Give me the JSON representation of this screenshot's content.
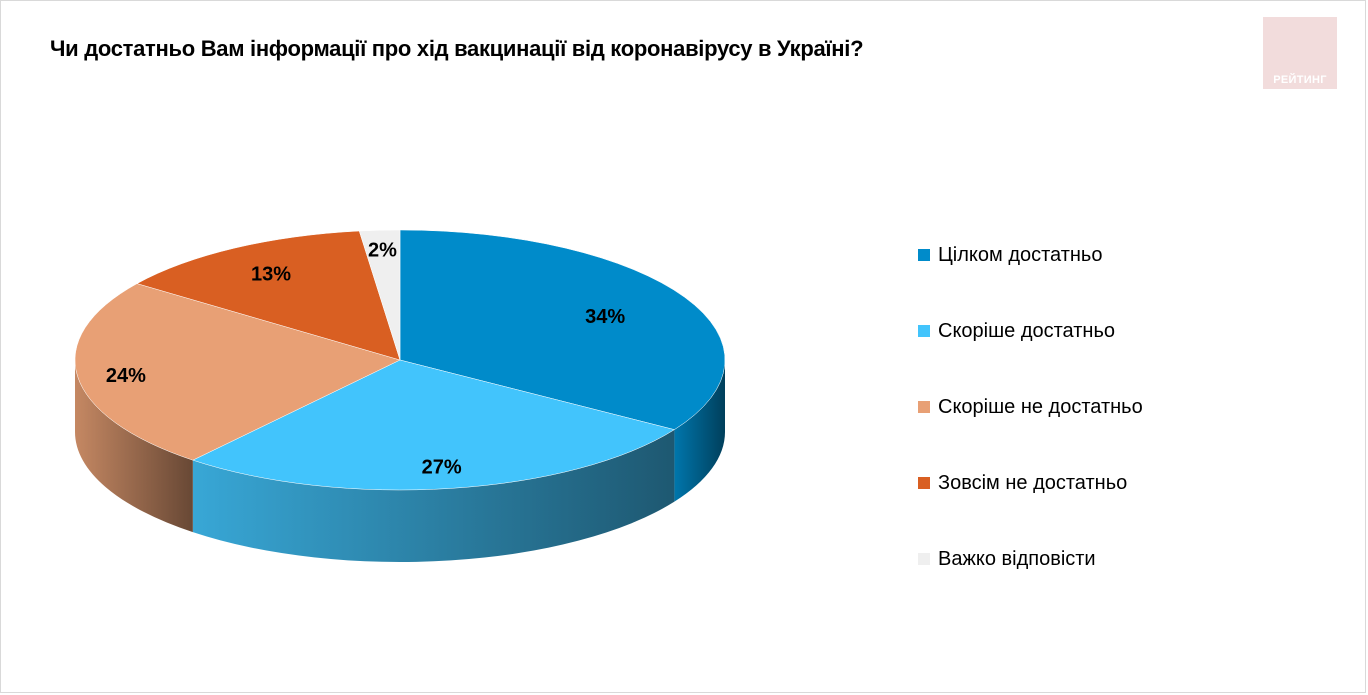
{
  "header": {
    "title": "Чи достатньо Вам інформації про хід вакцинації від коронавірусу в Україні?"
  },
  "logo": {
    "text": "РЕЙТИНГ"
  },
  "chart_data": {
    "type": "pie",
    "title": "Чи достатньо Вам інформації про хід вакцинації від коронавірусу в Україні?",
    "categories": [
      "Цілком достатньо",
      "Скоріше достатньо",
      "Скоріше не достатньо",
      "Зовсім не достатньо",
      "Важко відповісти"
    ],
    "values": [
      34,
      27,
      24,
      13,
      2
    ],
    "labels": [
      "34%",
      "27%",
      "24%",
      "13%",
      "2%"
    ],
    "colors": [
      "#008bca",
      "#42c4fc",
      "#e8a075",
      "#d95f22",
      "#efefef"
    ],
    "legend_position": "right",
    "style": "3d"
  }
}
